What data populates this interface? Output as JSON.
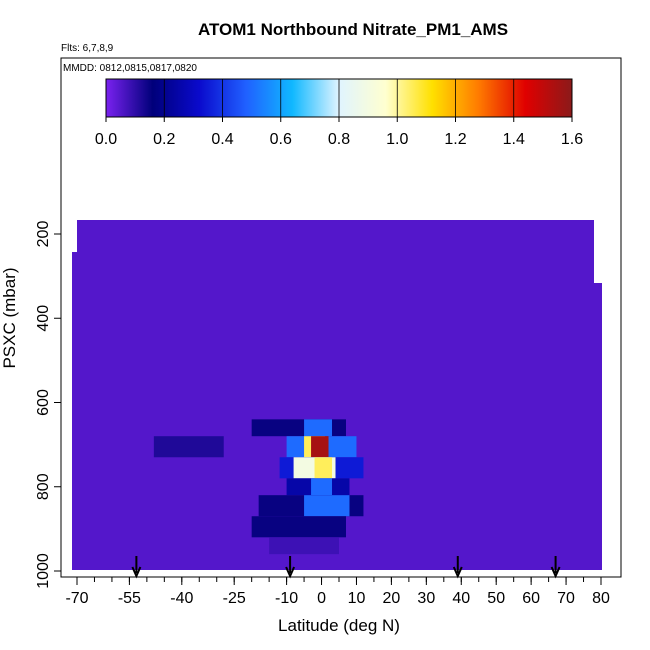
{
  "chart_data": {
    "type": "heatmap",
    "title": "ATOM1 Northbound Nitrate_PM1_AMS",
    "subtitle_flights": "Flts: 6,7,8,9",
    "subtitle_dates": "MMDD: 0812,0815,0817,0820",
    "xlabel": "Latitude (deg N)",
    "ylabel": "PSXC (mbar)",
    "xlim": [
      -70,
      80
    ],
    "ylim": [
      1000,
      150
    ],
    "y_reversed": true,
    "x_ticks": [
      -70,
      -55,
      -40,
      -25,
      -10,
      0,
      10,
      20,
      30,
      40,
      50,
      60,
      70,
      80
    ],
    "x_minor_step": 5,
    "y_ticks": [
      200,
      400,
      600,
      800,
      1000
    ],
    "colorbar": {
      "range": [
        0,
        1.6
      ],
      "ticks": [
        "0.0",
        "0.2",
        "0.4",
        "0.6",
        "0.8",
        "1.0",
        "1.2",
        "1.4",
        "1.6"
      ],
      "colors": [
        "#7a22f0",
        "#00007a",
        "#0a0acc",
        "#2060ff",
        "#10b8ff",
        "#e0f4ff",
        "#ffffd0",
        "#ffe000",
        "#ff7a00",
        "#e00000",
        "#8b1a1a"
      ]
    },
    "background_value": 0.05,
    "high_cells": [
      {
        "lat": [
          -20,
          7
        ],
        "p": [
          640,
          680
        ],
        "v": 0.15
      },
      {
        "lat": [
          -5,
          3
        ],
        "p": [
          640,
          680
        ],
        "v": 0.5
      },
      {
        "lat": [
          -48,
          -28
        ],
        "p": [
          680,
          730
        ],
        "v": 0.12
      },
      {
        "lat": [
          -10,
          10
        ],
        "p": [
          680,
          730
        ],
        "v": 0.5
      },
      {
        "lat": [
          -5,
          1
        ],
        "p": [
          680,
          730
        ],
        "v": 1.05
      },
      {
        "lat": [
          -3,
          2
        ],
        "p": [
          680,
          730
        ],
        "v": 1.55
      },
      {
        "lat": [
          -12,
          12
        ],
        "p": [
          730,
          780
        ],
        "v": 0.35
      },
      {
        "lat": [
          -8,
          4
        ],
        "p": [
          730,
          780
        ],
        "v": 0.9
      },
      {
        "lat": [
          -2,
          3
        ],
        "p": [
          730,
          780
        ],
        "v": 1.05
      },
      {
        "lat": [
          -10,
          8
        ],
        "p": [
          780,
          820
        ],
        "v": 0.25
      },
      {
        "lat": [
          -3,
          3
        ],
        "p": [
          780,
          820
        ],
        "v": 0.5
      },
      {
        "lat": [
          -18,
          12
        ],
        "p": [
          820,
          870
        ],
        "v": 0.15
      },
      {
        "lat": [
          -5,
          8
        ],
        "p": [
          820,
          870
        ],
        "v": 0.5
      },
      {
        "lat": [
          -20,
          7
        ],
        "p": [
          870,
          920
        ],
        "v": 0.15
      },
      {
        "lat": [
          -15,
          5
        ],
        "p": [
          920,
          960
        ],
        "v": 0.08
      }
    ],
    "flight_marker_latitudes": [
      -53,
      -9,
      39,
      67
    ]
  }
}
